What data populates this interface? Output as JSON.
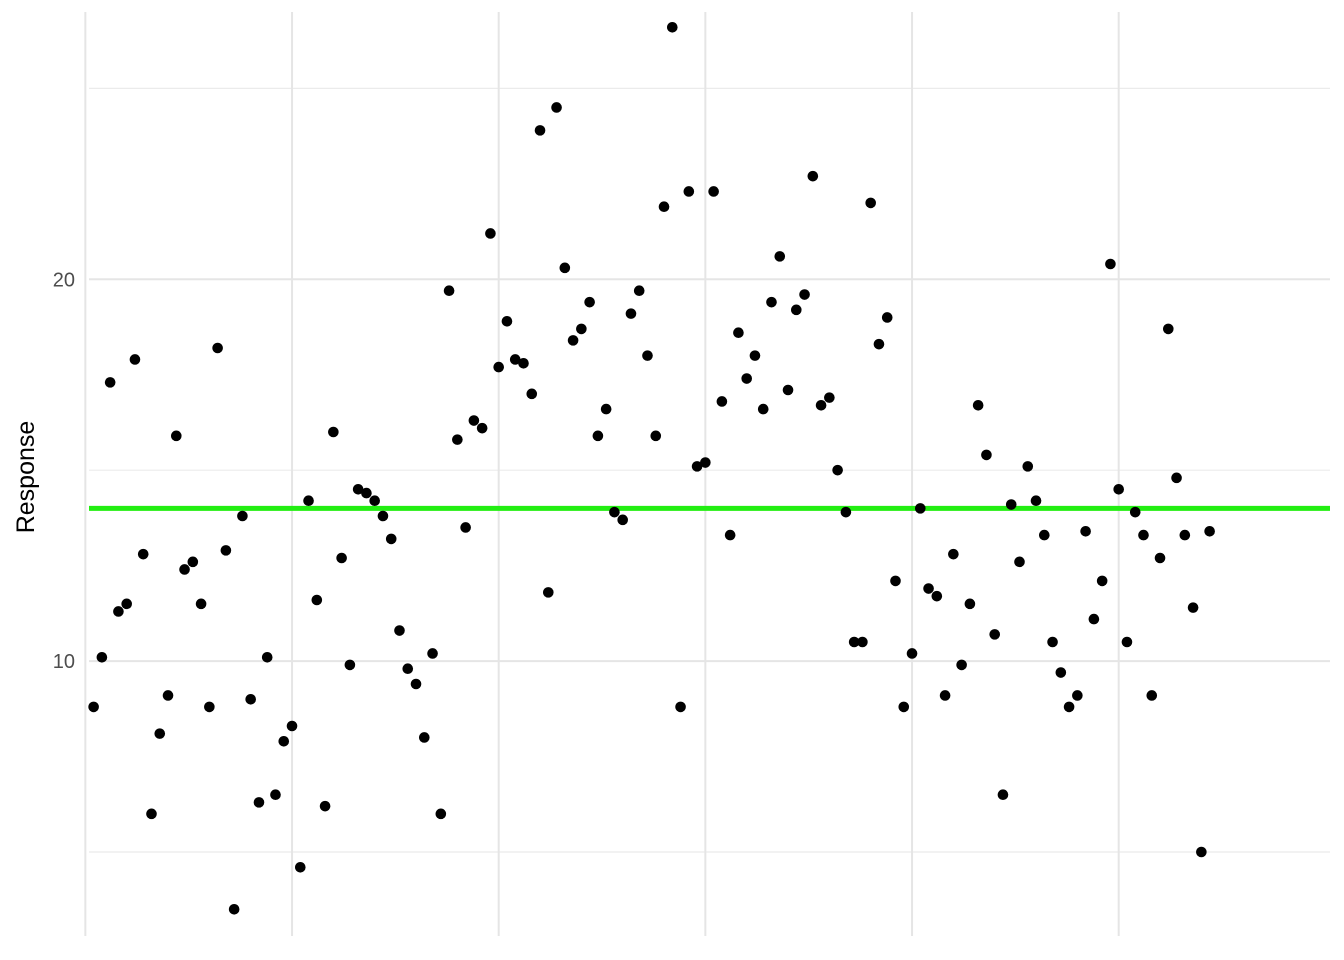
{
  "chart_data": {
    "type": "scatter",
    "title": "",
    "xlabel": "",
    "ylabel": "Response",
    "xlim": [
      0.44,
      150.56
    ],
    "ylim": [
      2.8,
      27.0
    ],
    "y_major_ticks": [
      10,
      20
    ],
    "y_minor_ticks": [
      5,
      15,
      25
    ],
    "y_tick_labels": [
      "10",
      "20"
    ],
    "x_gridlines": [
      0,
      25,
      50,
      75,
      100,
      125
    ],
    "x_tick_labels": [],
    "grid": true,
    "reference_line": {
      "type": "hline",
      "y": 14.0,
      "color": "#22ee11"
    },
    "point_color": "#000000",
    "x": [
      1,
      2,
      3,
      4,
      5,
      6,
      7,
      8,
      9,
      10,
      11,
      12,
      13,
      14,
      15,
      16,
      17,
      18,
      19,
      20,
      21,
      22,
      23,
      24,
      25,
      26,
      27,
      28,
      29,
      30,
      31,
      32,
      33,
      34,
      35,
      36,
      37,
      38,
      39,
      40,
      41,
      42,
      43,
      44,
      45,
      46,
      47,
      48,
      49,
      50,
      51,
      52,
      53,
      54,
      55,
      56,
      57,
      58,
      59,
      60,
      61,
      62,
      63,
      64,
      65,
      66,
      67,
      68,
      69,
      70,
      71,
      72,
      73,
      74,
      75,
      76,
      77,
      78,
      79,
      80,
      81,
      82,
      83,
      84,
      85,
      86,
      87,
      88,
      89,
      90,
      91,
      92,
      93,
      94,
      95,
      96,
      97,
      98,
      99,
      100,
      101,
      102,
      103,
      104,
      105,
      106,
      107,
      108,
      109,
      110,
      111,
      112,
      113,
      114,
      115,
      116,
      117,
      118,
      119,
      120,
      121,
      122,
      123,
      124,
      125,
      126,
      127,
      128,
      129,
      130,
      131,
      132,
      133,
      134,
      135,
      136
    ],
    "y": [
      8.8,
      10.1,
      17.3,
      11.3,
      11.5,
      17.9,
      12.8,
      6.0,
      8.1,
      9.1,
      15.9,
      12.4,
      12.6,
      11.5,
      8.8,
      18.2,
      12.9,
      3.5,
      13.8,
      9.0,
      6.3,
      10.1,
      6.5,
      7.9,
      8.3,
      4.6,
      14.2,
      11.6,
      6.2,
      16.0,
      12.7,
      9.9,
      14.5,
      14.4,
      14.2,
      13.8,
      13.2,
      10.8,
      9.8,
      9.4,
      8.0,
      10.2,
      6.0,
      19.7,
      15.8,
      13.5,
      16.3,
      16.1,
      21.2,
      17.7,
      18.9,
      17.9,
      17.8,
      17.0,
      23.9,
      11.8,
      24.5,
      20.3,
      18.4,
      18.7,
      19.4,
      15.9,
      16.6,
      13.9,
      13.7,
      19.1,
      19.7,
      18.0,
      15.9,
      21.9,
      26.6,
      8.8,
      22.3,
      15.1,
      15.2,
      22.3,
      16.8,
      13.3,
      18.6,
      17.4,
      18.0,
      16.6,
      19.4,
      20.6,
      17.1,
      19.2,
      19.6,
      22.7,
      16.7,
      16.9,
      15.0,
      13.9,
      10.5,
      10.5,
      22.0,
      18.3,
      19.0,
      12.1,
      8.8,
      10.2,
      14.0,
      11.9,
      11.7,
      9.1,
      12.8,
      9.9,
      11.5,
      16.7,
      15.4,
      10.7,
      6.5,
      14.1,
      12.6,
      15.1,
      14.2,
      13.3,
      10.5,
      9.7,
      8.8,
      9.1,
      13.4,
      11.1,
      12.1,
      20.4,
      14.5,
      10.5,
      13.9,
      13.3,
      9.1,
      12.7,
      18.7,
      14.8,
      13.3,
      11.4,
      5.0,
      13.4
    ]
  }
}
